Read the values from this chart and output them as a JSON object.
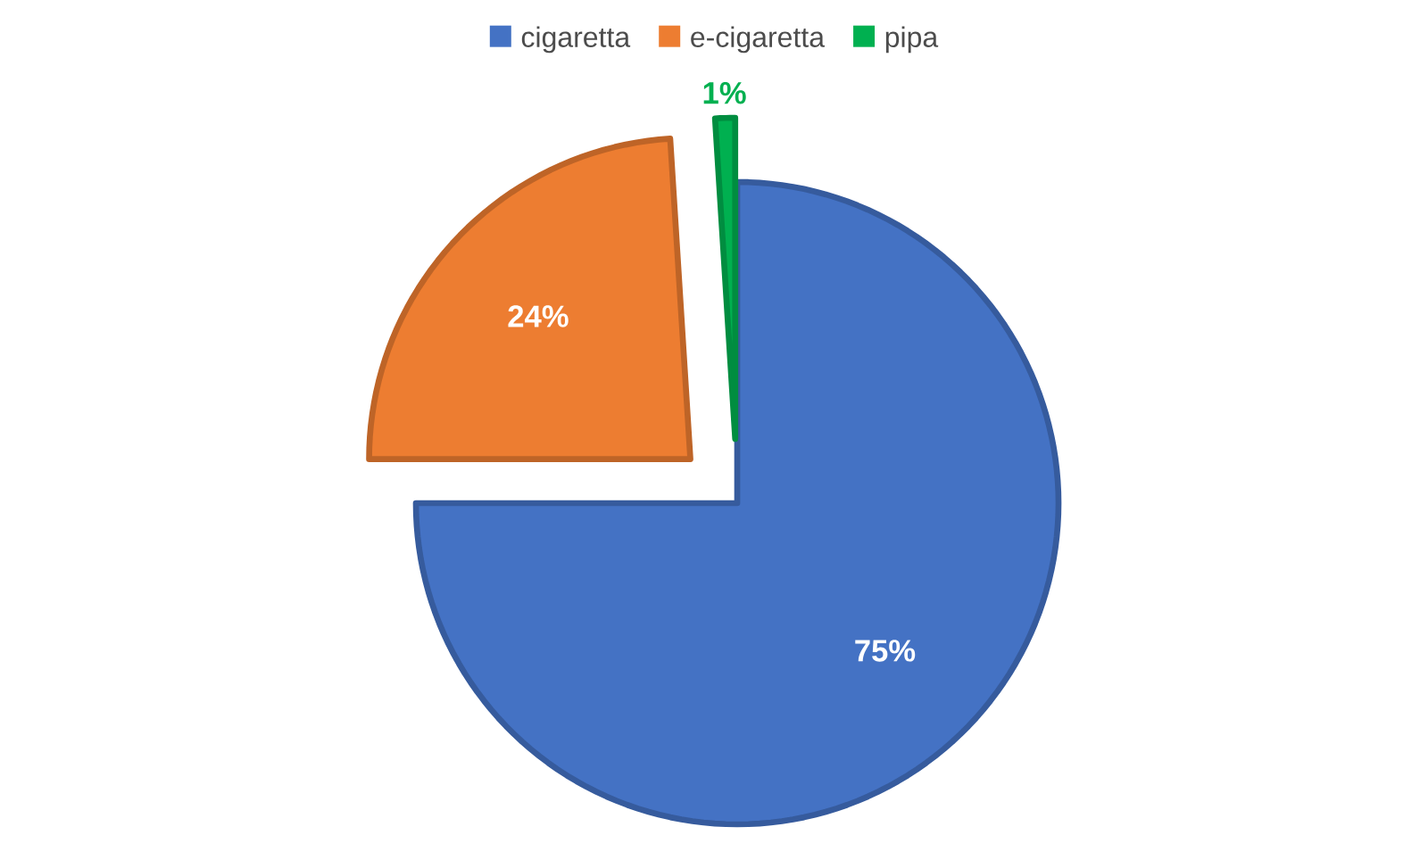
{
  "chart_data": {
    "type": "pie",
    "categories": [
      "cigaretta",
      "e-cigaretta",
      "pipa"
    ],
    "values": [
      75,
      24,
      1
    ],
    "value_labels": [
      "75%",
      "24%",
      "1%"
    ],
    "colors": [
      "#4472c4",
      "#ed7d31",
      "#00b050"
    ],
    "legend": "top"
  }
}
